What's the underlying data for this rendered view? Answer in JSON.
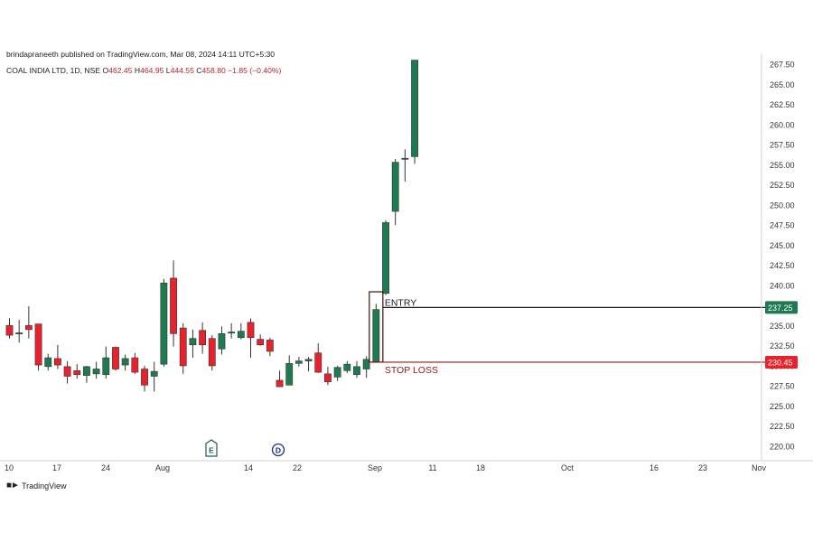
{
  "header": {
    "published": "brindapraneeth published on TradingView.com, Mar 08, 2024 14:11 UTC+5:30",
    "symbol": "COAL INDIA LTD, 1D, NSE",
    "o_label": "O",
    "o_value": "462.45",
    "h_label": "H",
    "h_value": "464.95",
    "l_label": "L",
    "l_value": "444.55",
    "c_label": "C",
    "c_value": "458.80",
    "change": "−1.85 (−0.40%)"
  },
  "branding": {
    "logo": "tradingview-logo",
    "name": "TradingView"
  },
  "colors": {
    "up": "#1e7a50",
    "down": "#e8222c",
    "text": "#222222",
    "entry_line": "#1b1b1b",
    "stop_line": "#8b1a1a",
    "stop_text": "#8b1a1a",
    "entry_box": "#4a0c0c",
    "axis_line": "#d0d0d0"
  },
  "chart_data": {
    "type": "candlestick",
    "title": "COAL INDIA LTD, 1D, NSE",
    "xlabel": "",
    "ylabel": "",
    "ylim": [
      218.3,
      268.0
    ],
    "x_tick_labels": [
      "10",
      "17",
      "24",
      "Aug",
      "14",
      "22",
      "Sep",
      "11",
      "18",
      "Oct",
      "16",
      "23",
      "Nov"
    ],
    "y_tick_labels": [
      "267.50",
      "265.00",
      "262.50",
      "260.00",
      "257.50",
      "255.00",
      "252.50",
      "250.00",
      "247.50",
      "245.00",
      "242.50",
      "240.00",
      "237.50",
      "235.00",
      "232.50",
      "230.00",
      "227.50",
      "225.00",
      "222.50",
      "220.00"
    ],
    "y_ticks": [
      267.5,
      265.0,
      262.5,
      260.0,
      257.5,
      255.0,
      252.5,
      250.0,
      247.5,
      245.0,
      242.5,
      240.0,
      237.5,
      235.0,
      232.5,
      230.0,
      227.5,
      225.0,
      222.5,
      220.0
    ],
    "candles": [
      {
        "o": 235.0,
        "h": 235.9,
        "l": 233.4,
        "c": 233.8
      },
      {
        "o": 234.0,
        "h": 235.7,
        "l": 232.9,
        "c": 234.1
      },
      {
        "o": 235.0,
        "h": 237.4,
        "l": 233.4,
        "c": 234.5
      },
      {
        "o": 235.2,
        "h": 235.2,
        "l": 229.4,
        "c": 230.1
      },
      {
        "o": 229.9,
        "h": 231.5,
        "l": 229.4,
        "c": 231.0
      },
      {
        "o": 230.9,
        "h": 232.6,
        "l": 229.6,
        "c": 230.1
      },
      {
        "o": 229.9,
        "h": 230.6,
        "l": 227.8,
        "c": 228.7
      },
      {
        "o": 229.4,
        "h": 230.2,
        "l": 228.4,
        "c": 228.9
      },
      {
        "o": 228.8,
        "h": 230.0,
        "l": 227.9,
        "c": 229.9
      },
      {
        "o": 229.0,
        "h": 230.5,
        "l": 228.4,
        "c": 229.6
      },
      {
        "o": 228.9,
        "h": 232.4,
        "l": 228.4,
        "c": 231.0
      },
      {
        "o": 232.3,
        "h": 232.4,
        "l": 229.4,
        "c": 229.6
      },
      {
        "o": 230.1,
        "h": 231.4,
        "l": 229.4,
        "c": 230.9
      },
      {
        "o": 231.0,
        "h": 231.6,
        "l": 229.0,
        "c": 229.2
      },
      {
        "o": 229.6,
        "h": 230.0,
        "l": 226.8,
        "c": 227.6
      },
      {
        "o": 228.7,
        "h": 230.5,
        "l": 226.8,
        "c": 229.3
      },
      {
        "o": 230.2,
        "h": 240.8,
        "l": 229.9,
        "c": 240.3
      },
      {
        "o": 240.9,
        "h": 243.1,
        "l": 232.4,
        "c": 234.0
      },
      {
        "o": 234.7,
        "h": 235.3,
        "l": 229.0,
        "c": 230.0
      },
      {
        "o": 232.6,
        "h": 234.5,
        "l": 231.0,
        "c": 233.4
      },
      {
        "o": 234.4,
        "h": 235.4,
        "l": 231.5,
        "c": 232.6
      },
      {
        "o": 233.4,
        "h": 233.8,
        "l": 229.4,
        "c": 230.0
      },
      {
        "o": 232.1,
        "h": 234.9,
        "l": 231.4,
        "c": 234.0
      },
      {
        "o": 234.1,
        "h": 235.3,
        "l": 233.4,
        "c": 234.2
      },
      {
        "o": 233.5,
        "h": 235.3,
        "l": 233.3,
        "c": 234.3
      },
      {
        "o": 235.4,
        "h": 235.9,
        "l": 231.0,
        "c": 233.5
      },
      {
        "o": 233.3,
        "h": 233.9,
        "l": 232.5,
        "c": 232.6
      },
      {
        "o": 233.2,
        "h": 233.5,
        "l": 231.2,
        "c": 231.8
      },
      {
        "o": 228.2,
        "h": 229.4,
        "l": 227.6,
        "c": 227.4
      },
      {
        "o": 227.6,
        "h": 231.3,
        "l": 227.6,
        "c": 230.3
      },
      {
        "o": 230.3,
        "h": 231.1,
        "l": 229.9,
        "c": 230.6
      },
      {
        "o": 230.6,
        "h": 231.1,
        "l": 229.3,
        "c": 230.8
      },
      {
        "o": 231.6,
        "h": 232.8,
        "l": 229.1,
        "c": 229.2
      },
      {
        "o": 229.0,
        "h": 229.9,
        "l": 227.6,
        "c": 228.0
      },
      {
        "o": 228.6,
        "h": 230.0,
        "l": 228.1,
        "c": 229.8
      },
      {
        "o": 229.4,
        "h": 230.6,
        "l": 229.1,
        "c": 230.2
      },
      {
        "o": 228.9,
        "h": 230.6,
        "l": 228.5,
        "c": 229.9
      },
      {
        "o": 229.6,
        "h": 231.2,
        "l": 228.5,
        "c": 230.8
      },
      {
        "o": 230.5,
        "h": 237.7,
        "l": 230.5,
        "c": 237.0
      },
      {
        "o": 239.0,
        "h": 248.1,
        "l": 238.8,
        "c": 247.8
      },
      {
        "o": 249.2,
        "h": 255.7,
        "l": 247.5,
        "c": 255.3
      },
      {
        "o": 255.8,
        "h": 256.9,
        "l": 252.9,
        "c": 255.8
      },
      {
        "o": 256.0,
        "h": 268.0,
        "l": 255.1,
        "c": 268.0
      }
    ],
    "levels": [
      {
        "name": "ENTRY",
        "value": 237.25,
        "label": "237.25",
        "marker_label": "ENTRY"
      },
      {
        "name": "STOP LOSS",
        "value": 230.45,
        "label": "230.45",
        "marker_label": "STOP LOSS"
      }
    ],
    "events": [
      {
        "label": "E",
        "kind": "earnings"
      },
      {
        "label": "D",
        "kind": "dividend"
      }
    ],
    "grid": false,
    "legend": "none"
  }
}
